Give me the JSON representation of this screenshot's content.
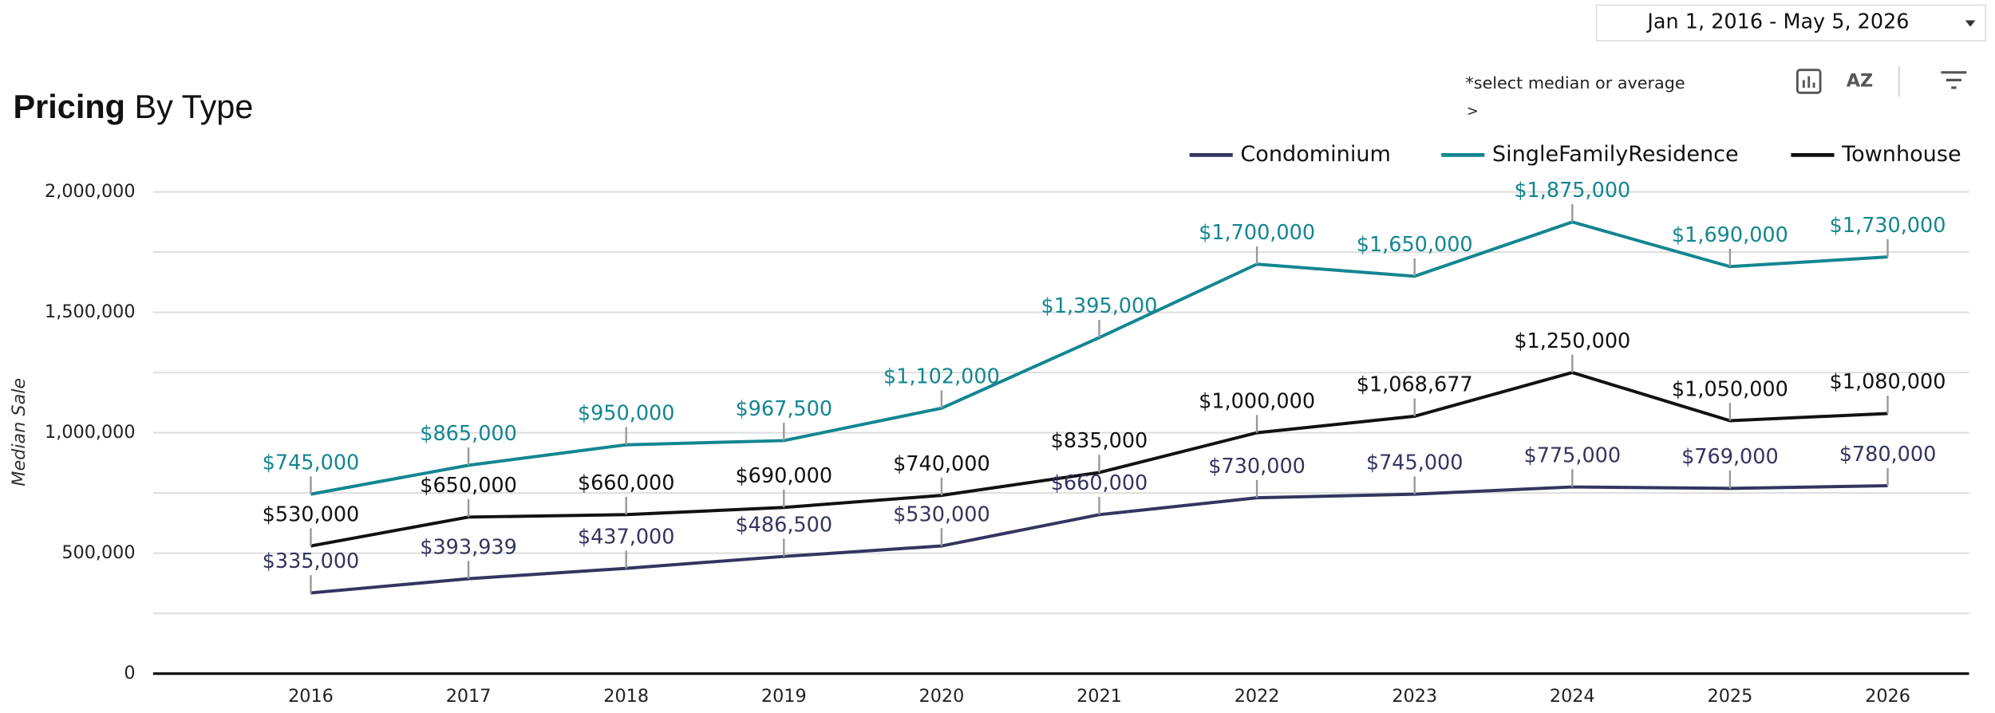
{
  "date_range": "Jan 1, 2016 - May 5, 2026",
  "note": "*select median or average",
  "note_arrow": ">",
  "chart_data": {
    "type": "line",
    "title_bold": "Pricing",
    "title_rest": "By Type",
    "y_label": "Median Sale",
    "categories": [
      "2016",
      "2017",
      "2018",
      "2019",
      "2020",
      "2021",
      "2022",
      "2023",
      "2024",
      "2025",
      "2026"
    ],
    "ylim": [
      0,
      2000000
    ],
    "yticks": [
      {
        "value": 0,
        "label": "0"
      },
      {
        "value": 500000,
        "label": "500,000"
      },
      {
        "value": 1000000,
        "label": "1,000,000"
      },
      {
        "value": 1500000,
        "label": "1,500,000"
      },
      {
        "value": 2000000,
        "label": "2,000,000"
      }
    ],
    "y_minor_ticks": [
      250000,
      750000,
      1250000,
      1750000
    ],
    "grid": true,
    "legend": "top-right",
    "series": [
      {
        "name": "Condominium",
        "color": "#34355f",
        "values": [
          335000,
          393939,
          437000,
          486500,
          530000,
          660000,
          730000,
          745000,
          775000,
          769000,
          780000
        ],
        "value_labels": [
          "$335,000",
          "$393,939",
          "$437,000",
          "$486,500",
          "$530,000",
          "$660,000",
          "$730,000",
          "$745,000",
          "$775,000",
          "$769,000",
          "$780,000"
        ]
      },
      {
        "name": "SingleFamilyResidence",
        "color": "#138690",
        "values": [
          745000,
          865000,
          950000,
          967500,
          1102000,
          1395000,
          1700000,
          1650000,
          1875000,
          1690000,
          1730000
        ],
        "value_labels": [
          "$745,000",
          "$865,000",
          "$950,000",
          "$967,500",
          "$1,102,000",
          "$1,395,000",
          "$1,700,000",
          "$1,650,000",
          "$1,875,000",
          "$1,690,000",
          "$1,730,000"
        ]
      },
      {
        "name": "Townhouse",
        "color": "#111111",
        "values": [
          530000,
          650000,
          660000,
          690000,
          740000,
          835000,
          1000000,
          1068677,
          1250000,
          1050000,
          1080000
        ],
        "value_labels": [
          "$530,000",
          "$650,000",
          "$660,000",
          "$690,000",
          "$740,000",
          "$835,000",
          "$1,000,000",
          "$1,068,677",
          "$1,250,000",
          "$1,050,000",
          "$1,080,000"
        ]
      }
    ]
  }
}
